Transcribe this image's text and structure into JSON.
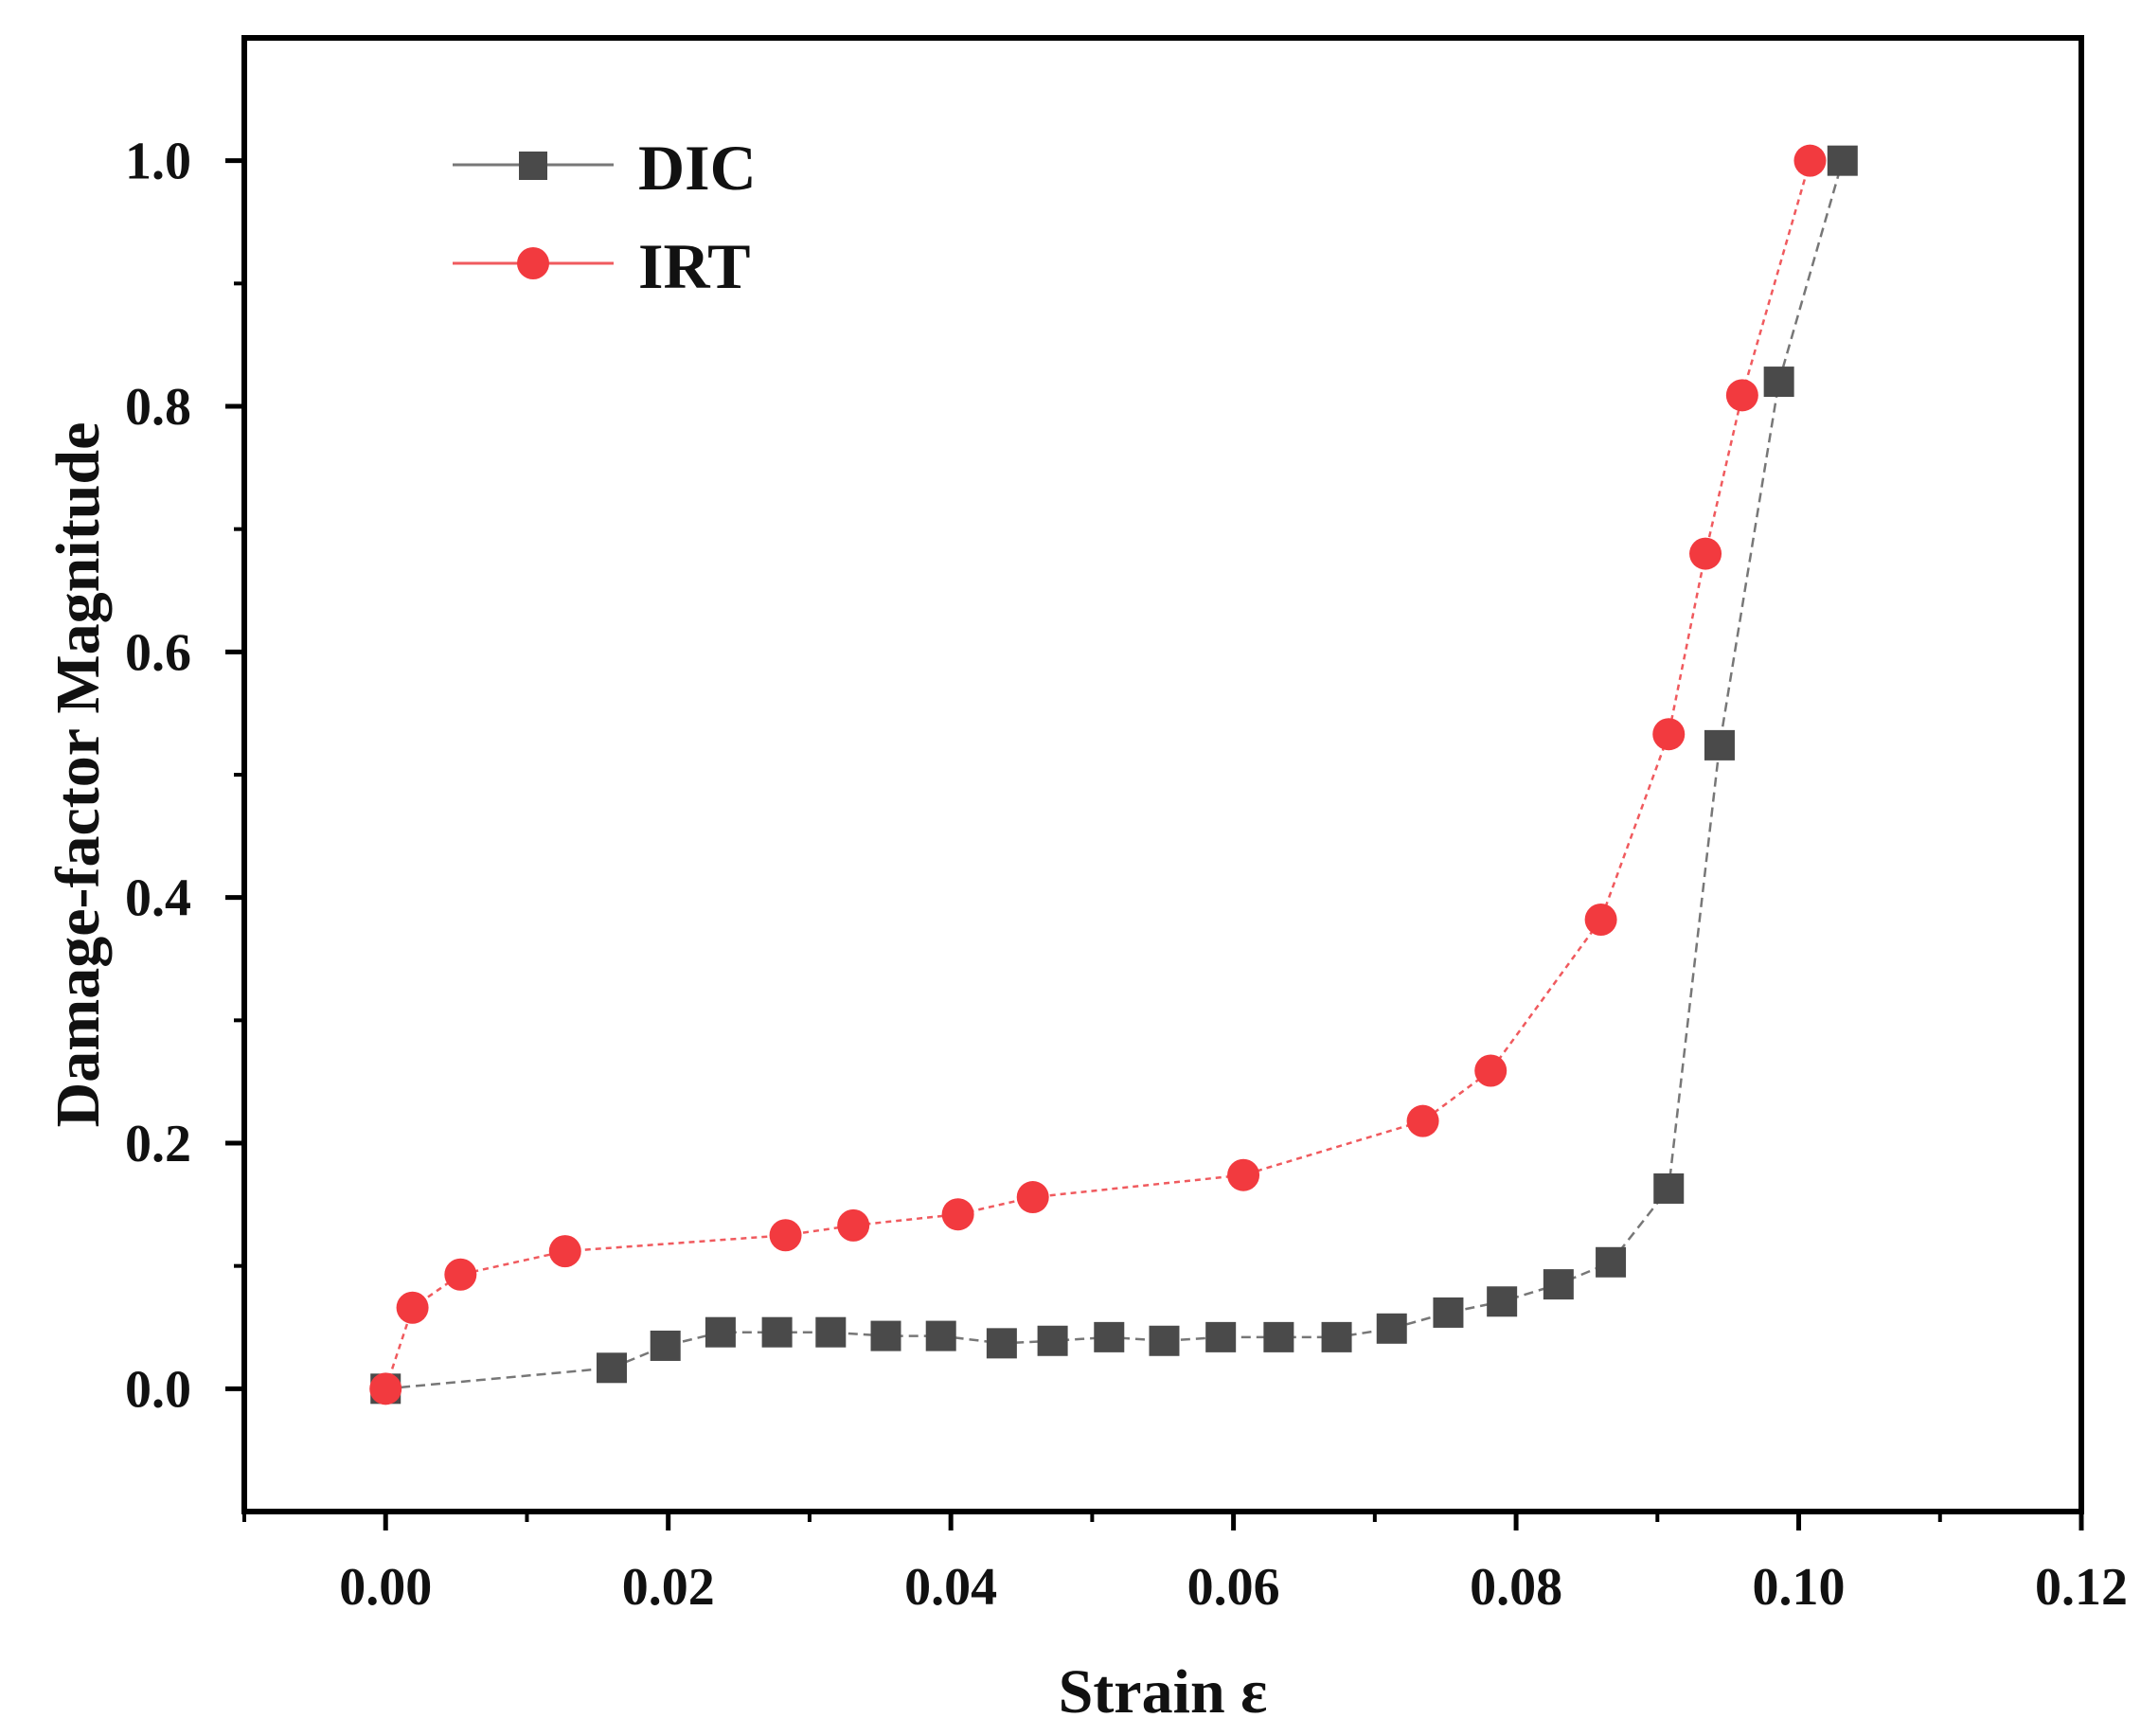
{
  "chart_data": {
    "type": "line",
    "title": "",
    "xlabel": "Strain ε",
    "ylabel": "Damage-factor Magnitude",
    "xlim": [
      -0.01,
      0.12
    ],
    "ylim": [
      -0.1,
      1.1
    ],
    "xticks": [
      0.0,
      0.02,
      0.04,
      0.06,
      0.08,
      0.1,
      0.12
    ],
    "xtick_labels": [
      "0.00",
      "0.02",
      "0.04",
      "0.06",
      "0.08",
      "0.10",
      "0.12"
    ],
    "yticks": [
      0.0,
      0.2,
      0.4,
      0.6,
      0.8,
      1.0
    ],
    "ytick_labels": [
      "0.0",
      "0.2",
      "0.4",
      "0.6",
      "0.8",
      "1.0"
    ],
    "grid": false,
    "legend_position": "top-left",
    "series": [
      {
        "name": "DIC",
        "marker": "square",
        "color": "#4a4a4a",
        "line_color": "#777777",
        "x": [
          0.0,
          0.016,
          0.0198,
          0.0237,
          0.0277,
          0.0315,
          0.0354,
          0.0393,
          0.0436,
          0.0472,
          0.0512,
          0.0551,
          0.0591,
          0.0632,
          0.0673,
          0.0712,
          0.0752,
          0.079,
          0.083,
          0.0867,
          0.0908,
          0.0944,
          0.0986,
          0.1031
        ],
        "y": [
          0.0,
          0.017,
          0.035,
          0.046,
          0.046,
          0.046,
          0.043,
          0.043,
          0.037,
          0.039,
          0.042,
          0.039,
          0.042,
          0.042,
          0.042,
          0.049,
          0.062,
          0.071,
          0.085,
          0.103,
          0.163,
          0.524,
          0.82,
          1.0
        ]
      },
      {
        "name": "IRT",
        "marker": "circle",
        "color": "#f23a3f",
        "line_color": "#f05a5e",
        "x": [
          0.0,
          0.0019,
          0.0053,
          0.0127,
          0.0283,
          0.0331,
          0.0405,
          0.0458,
          0.0607,
          0.0734,
          0.0782,
          0.086,
          0.0908,
          0.0934,
          0.096,
          0.1008
        ],
        "y": [
          0.0,
          0.066,
          0.093,
          0.112,
          0.125,
          0.133,
          0.142,
          0.156,
          0.174,
          0.218,
          0.259,
          0.382,
          0.533,
          0.68,
          0.809,
          1.0
        ]
      }
    ]
  }
}
